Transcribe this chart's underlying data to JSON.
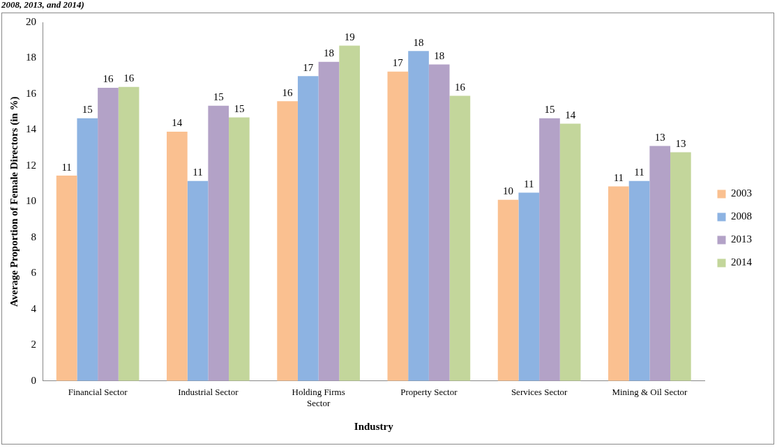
{
  "chart_data": {
    "type": "bar",
    "title": "2008, 2013, and 2014)",
    "xlabel": "Industry",
    "ylabel": "Average Proportion of Female Directors (in %)",
    "categories": [
      "Financial Sector",
      "Industrial Sector",
      "Holding Firms Sector",
      "Property Sector",
      "Services Sector",
      "Mining & Oil Sector"
    ],
    "series": [
      {
        "name": "2003",
        "color": "#fac090",
        "values": [
          11.45,
          13.9,
          15.6,
          17.25,
          10.1,
          10.85
        ],
        "value_labels": [
          "11",
          "14",
          "16",
          "17",
          "10",
          "11"
        ]
      },
      {
        "name": "2008",
        "color": "#8db3e2",
        "values": [
          14.65,
          11.15,
          17.0,
          18.4,
          10.5,
          11.15
        ],
        "value_labels": [
          "15",
          "11",
          "17",
          "18",
          "11",
          "11"
        ]
      },
      {
        "name": "2013",
        "color": "#b3a2c7",
        "values": [
          16.35,
          15.35,
          17.8,
          17.65,
          14.65,
          13.1
        ],
        "value_labels": [
          "16",
          "15",
          "18",
          "18",
          "15",
          "13"
        ]
      },
      {
        "name": "2014",
        "color": "#c3d69b",
        "values": [
          16.4,
          14.7,
          18.7,
          15.9,
          14.35,
          12.75
        ],
        "value_labels": [
          "16",
          "15",
          "19",
          "16",
          "14",
          "13"
        ]
      }
    ],
    "ylim": [
      0,
      20
    ],
    "yticks": [
      0,
      2,
      4,
      6,
      8,
      10,
      12,
      14,
      16,
      18,
      20
    ],
    "grid": false,
    "legend": "right"
  }
}
